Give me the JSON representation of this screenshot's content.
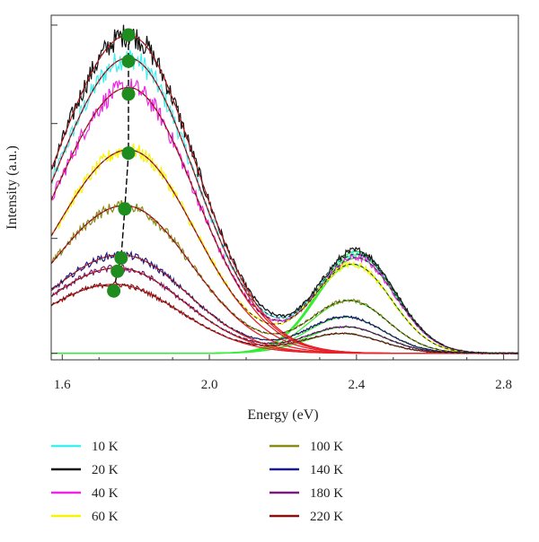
{
  "chart_data": {
    "type": "line",
    "xlabel": "Energy (eV)",
    "ylabel": "Intensity (a.u.)",
    "xlim": [
      1.57,
      2.84
    ],
    "ylim": [
      -0.02,
      1.03
    ],
    "x_ticks": [
      "1.6",
      "2.0",
      "2.4",
      "2.8"
    ],
    "x_tick_values": [
      1.6,
      2.0,
      2.4,
      2.8
    ],
    "y_tick_values": [
      0,
      0.35,
      0.7,
      1.0
    ],
    "grid": false,
    "legend_position": "below",
    "colors": {
      "fit_low_energy": "#e8222a",
      "fit_high_energy": "#33ee33",
      "peak_markers": "#1e8c1e",
      "peak_trend": "#000000"
    },
    "series": [
      {
        "name": "10 K",
        "color": "#3ff0f0",
        "low_amp": 0.9,
        "low_center": 1.78,
        "high_amp": 0.3,
        "high_center": 2.4
      },
      {
        "name": "20 K",
        "color": "#111111",
        "low_amp": 0.97,
        "low_center": 1.78,
        "high_amp": 0.31,
        "high_center": 2.4
      },
      {
        "name": "40 K",
        "color": "#f024e6",
        "low_amp": 0.81,
        "low_center": 1.78,
        "high_amp": 0.29,
        "high_center": 2.4
      },
      {
        "name": "60 K",
        "color": "#f8f500",
        "low_amp": 0.62,
        "low_center": 1.78,
        "high_amp": 0.27,
        "high_center": 2.39
      },
      {
        "name": "100 K",
        "color": "#8a8a16",
        "low_amp": 0.45,
        "low_center": 1.77,
        "high_amp": 0.16,
        "high_center": 2.38
      },
      {
        "name": "140 K",
        "color": "#1a1a8c",
        "low_amp": 0.3,
        "low_center": 1.76,
        "high_amp": 0.11,
        "high_center": 2.37
      },
      {
        "name": "180 K",
        "color": "#7a1a7a",
        "low_amp": 0.26,
        "low_center": 1.75,
        "high_amp": 0.08,
        "high_center": 2.37
      },
      {
        "name": "220 K",
        "color": "#8a1010",
        "low_amp": 0.21,
        "low_center": 1.74,
        "high_amp": 0.06,
        "high_center": 2.36
      }
    ],
    "peak_points": [
      {
        "x": 1.78,
        "y": 0.97
      },
      {
        "x": 1.78,
        "y": 0.89
      },
      {
        "x": 1.78,
        "y": 0.79
      },
      {
        "x": 1.78,
        "y": 0.61
      },
      {
        "x": 1.77,
        "y": 0.44
      },
      {
        "x": 1.76,
        "y": 0.29
      },
      {
        "x": 1.75,
        "y": 0.25
      },
      {
        "x": 1.74,
        "y": 0.19
      }
    ]
  }
}
